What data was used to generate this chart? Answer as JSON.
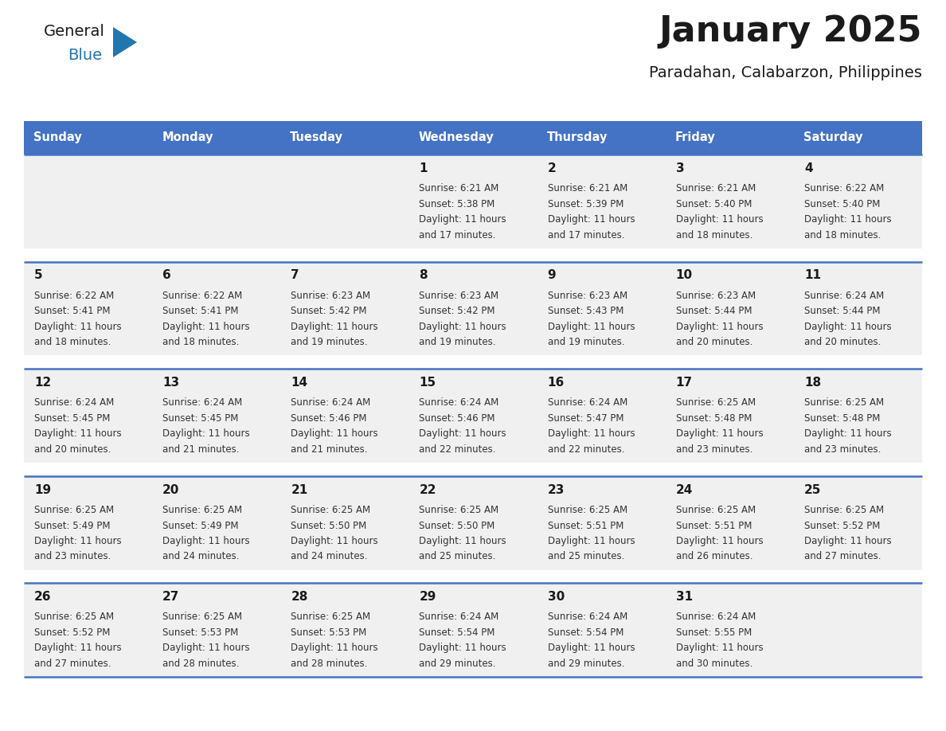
{
  "title": "January 2025",
  "subtitle": "Paradahan, Calabarzon, Philippines",
  "days_of_week": [
    "Sunday",
    "Monday",
    "Tuesday",
    "Wednesday",
    "Thursday",
    "Friday",
    "Saturday"
  ],
  "header_bg": "#4472C4",
  "header_text_color": "#FFFFFF",
  "cell_bg": "#F0F0F0",
  "cell_bg_white": "#FFFFFF",
  "row_separator_color": "#4472C4",
  "title_color": "#1a1a1a",
  "subtitle_color": "#1a1a1a",
  "day_number_color": "#1a1a1a",
  "cell_text_color": "#333333",
  "logo_general_color": "#1a1a1a",
  "logo_blue_color": "#2176AE",
  "calendar": [
    [
      {
        "day": null,
        "sunrise": null,
        "sunset": null,
        "daylight": null
      },
      {
        "day": null,
        "sunrise": null,
        "sunset": null,
        "daylight": null
      },
      {
        "day": null,
        "sunrise": null,
        "sunset": null,
        "daylight": null
      },
      {
        "day": 1,
        "sunrise": "6:21 AM",
        "sunset": "5:38 PM",
        "daylight": "11 hours and 17 minutes."
      },
      {
        "day": 2,
        "sunrise": "6:21 AM",
        "sunset": "5:39 PM",
        "daylight": "11 hours and 17 minutes."
      },
      {
        "day": 3,
        "sunrise": "6:21 AM",
        "sunset": "5:40 PM",
        "daylight": "11 hours and 18 minutes."
      },
      {
        "day": 4,
        "sunrise": "6:22 AM",
        "sunset": "5:40 PM",
        "daylight": "11 hours and 18 minutes."
      }
    ],
    [
      {
        "day": 5,
        "sunrise": "6:22 AM",
        "sunset": "5:41 PM",
        "daylight": "11 hours and 18 minutes."
      },
      {
        "day": 6,
        "sunrise": "6:22 AM",
        "sunset": "5:41 PM",
        "daylight": "11 hours and 18 minutes."
      },
      {
        "day": 7,
        "sunrise": "6:23 AM",
        "sunset": "5:42 PM",
        "daylight": "11 hours and 19 minutes."
      },
      {
        "day": 8,
        "sunrise": "6:23 AM",
        "sunset": "5:42 PM",
        "daylight": "11 hours and 19 minutes."
      },
      {
        "day": 9,
        "sunrise": "6:23 AM",
        "sunset": "5:43 PM",
        "daylight": "11 hours and 19 minutes."
      },
      {
        "day": 10,
        "sunrise": "6:23 AM",
        "sunset": "5:44 PM",
        "daylight": "11 hours and 20 minutes."
      },
      {
        "day": 11,
        "sunrise": "6:24 AM",
        "sunset": "5:44 PM",
        "daylight": "11 hours and 20 minutes."
      }
    ],
    [
      {
        "day": 12,
        "sunrise": "6:24 AM",
        "sunset": "5:45 PM",
        "daylight": "11 hours and 20 minutes."
      },
      {
        "day": 13,
        "sunrise": "6:24 AM",
        "sunset": "5:45 PM",
        "daylight": "11 hours and 21 minutes."
      },
      {
        "day": 14,
        "sunrise": "6:24 AM",
        "sunset": "5:46 PM",
        "daylight": "11 hours and 21 minutes."
      },
      {
        "day": 15,
        "sunrise": "6:24 AM",
        "sunset": "5:46 PM",
        "daylight": "11 hours and 22 minutes."
      },
      {
        "day": 16,
        "sunrise": "6:24 AM",
        "sunset": "5:47 PM",
        "daylight": "11 hours and 22 minutes."
      },
      {
        "day": 17,
        "sunrise": "6:25 AM",
        "sunset": "5:48 PM",
        "daylight": "11 hours and 23 minutes."
      },
      {
        "day": 18,
        "sunrise": "6:25 AM",
        "sunset": "5:48 PM",
        "daylight": "11 hours and 23 minutes."
      }
    ],
    [
      {
        "day": 19,
        "sunrise": "6:25 AM",
        "sunset": "5:49 PM",
        "daylight": "11 hours and 23 minutes."
      },
      {
        "day": 20,
        "sunrise": "6:25 AM",
        "sunset": "5:49 PM",
        "daylight": "11 hours and 24 minutes."
      },
      {
        "day": 21,
        "sunrise": "6:25 AM",
        "sunset": "5:50 PM",
        "daylight": "11 hours and 24 minutes."
      },
      {
        "day": 22,
        "sunrise": "6:25 AM",
        "sunset": "5:50 PM",
        "daylight": "11 hours and 25 minutes."
      },
      {
        "day": 23,
        "sunrise": "6:25 AM",
        "sunset": "5:51 PM",
        "daylight": "11 hours and 25 minutes."
      },
      {
        "day": 24,
        "sunrise": "6:25 AM",
        "sunset": "5:51 PM",
        "daylight": "11 hours and 26 minutes."
      },
      {
        "day": 25,
        "sunrise": "6:25 AM",
        "sunset": "5:52 PM",
        "daylight": "11 hours and 27 minutes."
      }
    ],
    [
      {
        "day": 26,
        "sunrise": "6:25 AM",
        "sunset": "5:52 PM",
        "daylight": "11 hours and 27 minutes."
      },
      {
        "day": 27,
        "sunrise": "6:25 AM",
        "sunset": "5:53 PM",
        "daylight": "11 hours and 28 minutes."
      },
      {
        "day": 28,
        "sunrise": "6:25 AM",
        "sunset": "5:53 PM",
        "daylight": "11 hours and 28 minutes."
      },
      {
        "day": 29,
        "sunrise": "6:24 AM",
        "sunset": "5:54 PM",
        "daylight": "11 hours and 29 minutes."
      },
      {
        "day": 30,
        "sunrise": "6:24 AM",
        "sunset": "5:54 PM",
        "daylight": "11 hours and 29 minutes."
      },
      {
        "day": 31,
        "sunrise": "6:24 AM",
        "sunset": "5:55 PM",
        "daylight": "11 hours and 30 minutes."
      },
      {
        "day": null,
        "sunrise": null,
        "sunset": null,
        "daylight": null
      }
    ]
  ]
}
